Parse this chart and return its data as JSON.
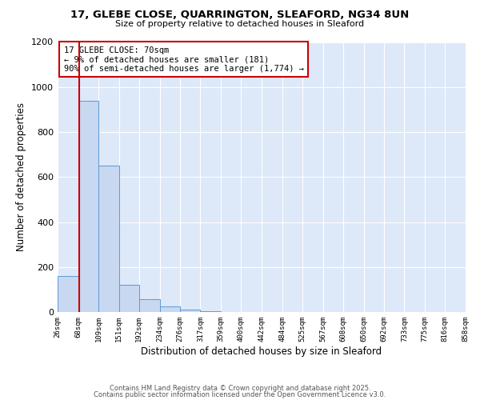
{
  "title": "17, GLEBE CLOSE, QUARRINGTON, SLEAFORD, NG34 8UN",
  "subtitle": "Size of property relative to detached houses in Sleaford",
  "xlabel": "Distribution of detached houses by size in Sleaford",
  "ylabel": "Number of detached properties",
  "bar_color": "#c8d8f0",
  "bar_edgecolor": "#5b9bd5",
  "annotation_box_edgecolor": "#cc0000",
  "vline_color": "#cc0000",
  "background_color": "#ffffff",
  "plot_background": "#dde8f8",
  "grid_color": "#ffffff",
  "bins": [
    26,
    68,
    109,
    151,
    192,
    234,
    276,
    317,
    359,
    400,
    442,
    484,
    525,
    567,
    608,
    650,
    692,
    733,
    775,
    816,
    858
  ],
  "bar_heights": [
    160,
    940,
    650,
    120,
    58,
    25,
    10,
    2,
    0,
    0,
    0,
    0,
    0,
    0,
    0,
    0,
    0,
    0,
    0,
    0
  ],
  "property_size": 70,
  "annotation_line1": "17 GLEBE CLOSE: 70sqm",
  "annotation_line2": "← 9% of detached houses are smaller (181)",
  "annotation_line3": "90% of semi-detached houses are larger (1,774) →",
  "ylim": [
    0,
    1200
  ],
  "yticks": [
    0,
    200,
    400,
    600,
    800,
    1000,
    1200
  ],
  "xtick_labels": [
    "26sqm",
    "68sqm",
    "109sqm",
    "151sqm",
    "192sqm",
    "234sqm",
    "276sqm",
    "317sqm",
    "359sqm",
    "400sqm",
    "442sqm",
    "484sqm",
    "525sqm",
    "567sqm",
    "608sqm",
    "650sqm",
    "692sqm",
    "733sqm",
    "775sqm",
    "816sqm",
    "858sqm"
  ],
  "footer_line1": "Contains HM Land Registry data © Crown copyright and database right 2025.",
  "footer_line2": "Contains public sector information licensed under the Open Government Licence v3.0."
}
